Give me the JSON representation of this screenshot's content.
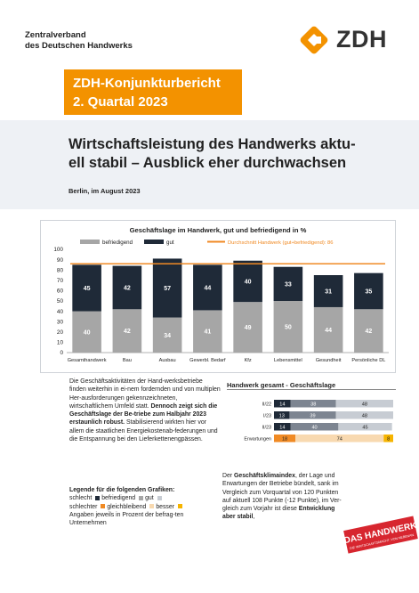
{
  "header": {
    "org_name": "Zentralverband\ndes Deutschen Handwerks",
    "logo_text": "ZDH"
  },
  "banner": {
    "line1": "ZDH-Konjunkturbericht",
    "line2": "2. Quartal 2023",
    "color": "#f39200"
  },
  "document": {
    "title": "Wirtschaftsleistung des Handwerks aktu-\nell stabil – Ausblick eher durchwachsen",
    "date": "Berlin, im August 2023"
  },
  "chart_data": [
    {
      "type": "bar",
      "title": "Geschäftslage im Handwerk, gut und befriedigend in %",
      "categories": [
        "Gesamthandwerk",
        "Bau",
        "Ausbau",
        "Gewerbl. Bedarf",
        "Kfz",
        "Lebensmittel",
        "Gesundheit",
        "Persönliche DL"
      ],
      "series": [
        {
          "name": "befriedigend",
          "values": [
            40,
            42,
            34,
            41,
            49,
            50,
            44,
            42
          ],
          "color": "#a6a6a6"
        },
        {
          "name": "gut",
          "values": [
            45,
            42,
            57,
            44,
            40,
            33,
            31,
            35
          ],
          "color": "#1f2a38"
        }
      ],
      "reference_line": {
        "name": "Durchschnitt Handwerk (gut+befriedigend): 86",
        "value": 86,
        "color": "#f08a24"
      },
      "ylim": [
        0,
        100
      ],
      "yticks": [
        0,
        10,
        20,
        30,
        40,
        50,
        60,
        70,
        80,
        90,
        100
      ],
      "stacked": true,
      "legend": "top"
    },
    {
      "type": "bar",
      "title": "Handwerk gesamt - Geschäftslage",
      "orientation": "horizontal",
      "stacked": true,
      "categories": [
        "II/22",
        "I/23",
        "II/23",
        "Erwartungen"
      ],
      "rows": [
        [
          {
            "v": 14,
            "c": "#1f2a38"
          },
          {
            "v": 38,
            "c": "#7d8591"
          },
          {
            "v": 48,
            "c": "#c7ccd3"
          }
        ],
        [
          {
            "v": 13,
            "c": "#1f2a38"
          },
          {
            "v": 39,
            "c": "#7d8591"
          },
          {
            "v": 48,
            "c": "#c7ccd3"
          }
        ],
        [
          {
            "v": 14,
            "c": "#1f2a38"
          },
          {
            "v": 40,
            "c": "#7d8591"
          },
          {
            "v": 45,
            "c": "#c7ccd3"
          }
        ],
        [
          {
            "v": 18,
            "c": "#f08a24"
          },
          {
            "v": 74,
            "c": "#f8d9b0"
          },
          {
            "v": 8,
            "c": "#f6b400"
          }
        ]
      ],
      "xlim": [
        0,
        100
      ]
    }
  ],
  "body": {
    "para1_a": "Die Geschäftsaktivitäten der Hand-werksbetriebe finden weiterhin in ei-nem fordernden und von multiplen Her-ausforderungen gekennzeichneten, wirtschaftlichem Umfeld statt. ",
    "para1_bold": "Dennoch zeigt sich die Geschäftslage der Be-triebe zum Halbjahr 2023 erstaunlich robust.",
    "para1_b": " Stabilisierend wirkten hier vor allem die staatlichen Energiekostenab-federungen und die Entspannung bei den Lieferkettenengpässen.",
    "legend_title": "Legende für die folgenden Grafiken:",
    "legend_schlecht": "schlecht",
    "legend_befriedigend": "befriedigend",
    "legend_gut": "gut",
    "legend_schlechter": "schlechter",
    "legend_gleichbleibend": "gleichbleibend",
    "legend_besser": "besser",
    "legend_note": "Angaben jeweils in Prozent der befrag-ten Unternehmen",
    "para2_a": "Der ",
    "para2_bold1": "Geschäftsklimaindex",
    "para2_b": ", der Lage und Erwartungen der Betriebe bündelt, sank im Vergleich zum Vorquartal von 120 Punkten auf aktuell 108 Punkte (-12 Punkte), im Ver-gleich zum Vorjahr ist diese ",
    "para2_bold2": "Entwicklung aber stabil",
    "para2_c": ","
  },
  "stamp": {
    "line1": "DAS HANDWERK",
    "line2": "DIE WIRTSCHAFTSMACHT. VON NEBENAN.",
    "color": "#d7262f"
  }
}
